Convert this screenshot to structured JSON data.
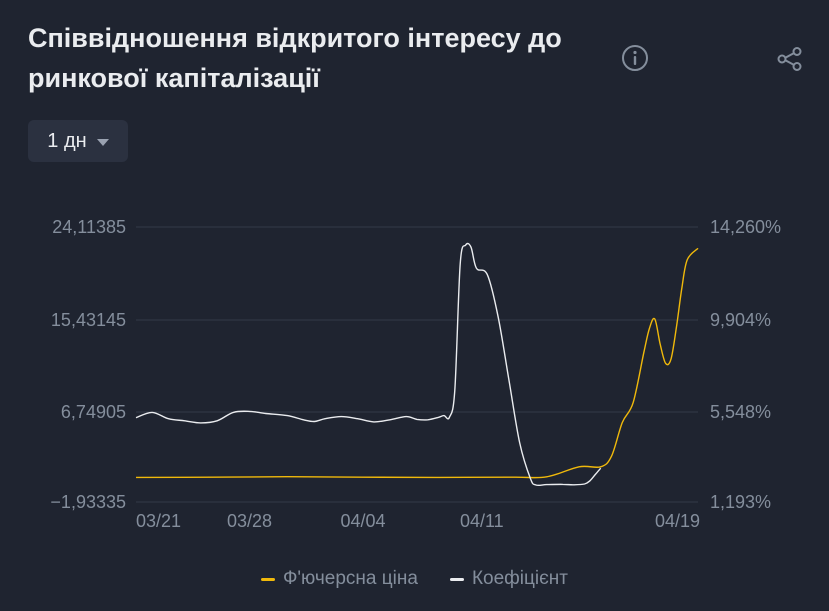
{
  "header": {
    "title": "Співвідношення відкритого інтересу до ринкової капіталізації",
    "info_icon": "info-icon",
    "share_icon": "share-icon"
  },
  "interval": {
    "selected": "1 дн"
  },
  "legend": [
    {
      "name": "Ф'ючерсна ціна",
      "color": "#f0b90b"
    },
    {
      "name": "Коефіцієнт",
      "color": "#eaecef"
    }
  ],
  "chart_data": {
    "type": "line",
    "x_ticks": [
      "03/21",
      "03/28",
      "04/04",
      "04/11",
      "04/19"
    ],
    "y_left_ticks": [
      "24,11385",
      "15,43145",
      "6,74905",
      "−1,93335"
    ],
    "y_right_ticks": [
      "14,260%",
      "9,904%",
      "5,548%",
      "1,193%"
    ],
    "y_left_range": [
      -1.93335,
      24.11385
    ],
    "y_right_range": [
      1.193,
      14.26
    ],
    "grid": true,
    "legend_position": "bottom-center",
    "series": [
      {
        "name": "Ф'ючерсна ціна",
        "axis": "left",
        "color": "#f0b90b",
        "values": [
          [
            0,
            0.4
          ],
          [
            14,
            0.42
          ],
          [
            28,
            0.46
          ],
          [
            42,
            0.42
          ],
          [
            56,
            0.4
          ],
          [
            70,
            0.42
          ],
          [
            76,
            0.45
          ],
          [
            82,
            1.4
          ],
          [
            86,
            1.4
          ],
          [
            88,
            2.4
          ],
          [
            90,
            5.6
          ],
          [
            92,
            7.5
          ],
          [
            94,
            12.3
          ],
          [
            95,
            14.5
          ],
          [
            96,
            15.4
          ],
          [
            97,
            13.0
          ],
          [
            98,
            11.2
          ],
          [
            99,
            11.6
          ],
          [
            100,
            14.6
          ],
          [
            101,
            18.3
          ],
          [
            102,
            21.0
          ],
          [
            104,
            22.1
          ]
        ]
      },
      {
        "name": "Коефіцієнт",
        "axis": "right",
        "color": "#eaecef",
        "values": [
          [
            0,
            5.2
          ],
          [
            3,
            5.45
          ],
          [
            6,
            5.15
          ],
          [
            9,
            5.05
          ],
          [
            12,
            4.95
          ],
          [
            15,
            5.05
          ],
          [
            18,
            5.45
          ],
          [
            21,
            5.5
          ],
          [
            24,
            5.4
          ],
          [
            28,
            5.3
          ],
          [
            31,
            5.1
          ],
          [
            33,
            5.02
          ],
          [
            35,
            5.15
          ],
          [
            38,
            5.25
          ],
          [
            41,
            5.15
          ],
          [
            44,
            5.0
          ],
          [
            47,
            5.1
          ],
          [
            50,
            5.25
          ],
          [
            52,
            5.12
          ],
          [
            54,
            5.1
          ],
          [
            56,
            5.22
          ],
          [
            57,
            5.3
          ],
          [
            58,
            5.22
          ],
          [
            59,
            6.5
          ],
          [
            60,
            12.5
          ],
          [
            61,
            13.4
          ],
          [
            62,
            13.3
          ],
          [
            63,
            12.3
          ],
          [
            65,
            12.0
          ],
          [
            67,
            10.0
          ],
          [
            69,
            7.0
          ],
          [
            71,
            4.0
          ],
          [
            73,
            2.3
          ],
          [
            74,
            2.0
          ],
          [
            76,
            2.02
          ],
          [
            79,
            2.03
          ],
          [
            81,
            2.01
          ],
          [
            83,
            2.05
          ],
          [
            84,
            2.2
          ],
          [
            85,
            2.5
          ],
          [
            86,
            2.8
          ]
        ]
      }
    ]
  }
}
